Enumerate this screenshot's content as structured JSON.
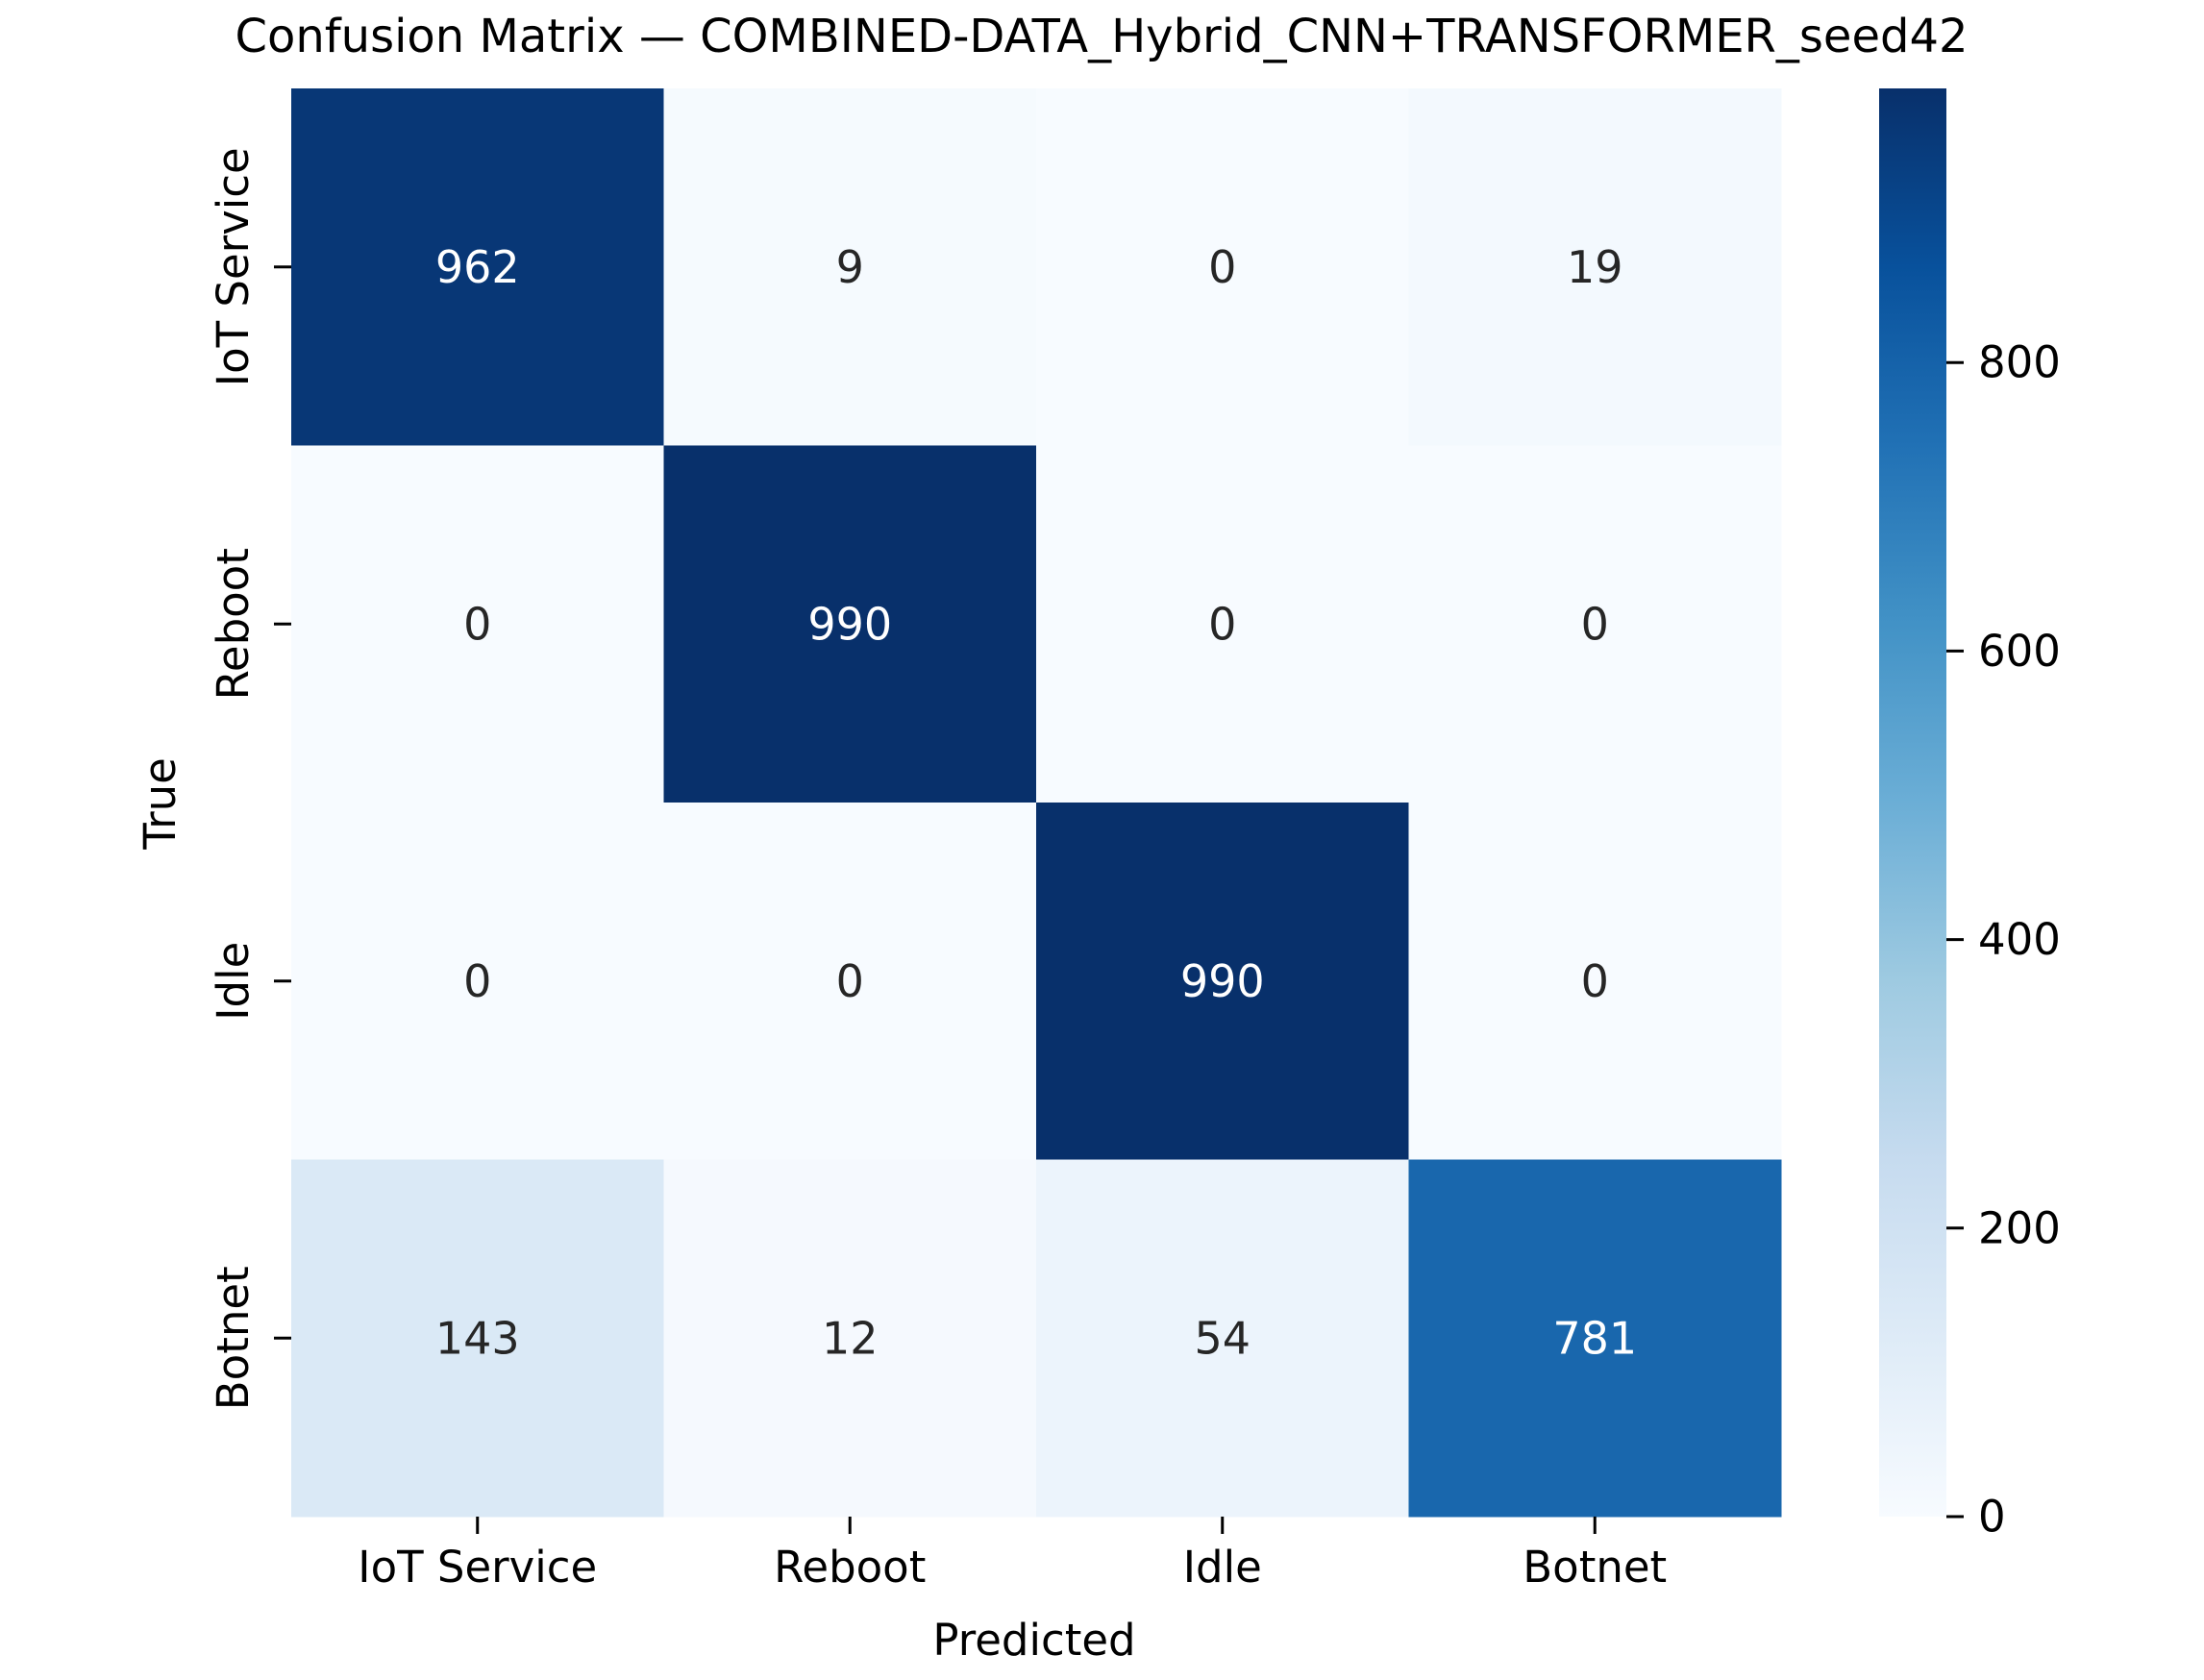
{
  "chart_data": {
    "type": "heatmap",
    "title": "Confusion Matrix — COMBINED-DATA_Hybrid_CNN+TRANSFORMER_seed42",
    "xlabel": "Predicted",
    "ylabel": "True",
    "x_categories": [
      "IoT Service",
      "Reboot",
      "Idle",
      "Botnet"
    ],
    "y_categories": [
      "IoT Service",
      "Reboot",
      "Idle",
      "Botnet"
    ],
    "matrix": [
      [
        962,
        9,
        0,
        19
      ],
      [
        0,
        990,
        0,
        0
      ],
      [
        0,
        0,
        990,
        0
      ],
      [
        143,
        12,
        54,
        781
      ]
    ],
    "colormap": "Blues",
    "vmin": 0,
    "vmax": 990,
    "colorbar_ticks": [
      0,
      200,
      400,
      600,
      800
    ],
    "text_color_light": "#ffffff",
    "text_color_dark": "#262626"
  }
}
